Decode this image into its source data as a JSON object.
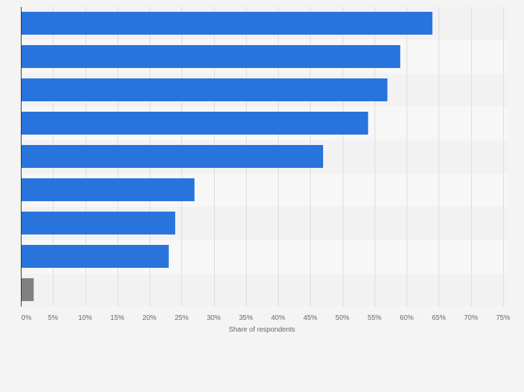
{
  "chart_data": {
    "type": "bar",
    "orientation": "horizontal",
    "categories": [
      "",
      "",
      "",
      "",
      "",
      "",
      "",
      "",
      ""
    ],
    "values": [
      64,
      59,
      57,
      54,
      47,
      27,
      24,
      23,
      2
    ],
    "series": [
      {
        "name": "",
        "values": [
          64,
          59,
          57,
          54,
          47,
          27,
          24,
          23,
          2
        ]
      }
    ],
    "bar_colors": [
      "#2874dc",
      "#2874dc",
      "#2874dc",
      "#2874dc",
      "#2874dc",
      "#2874dc",
      "#2874dc",
      "#2874dc",
      "#808080"
    ],
    "title": "",
    "xlabel": "Share of respondents",
    "ylabel": "",
    "xlim": [
      0,
      75
    ],
    "x_ticks": [
      0,
      5,
      10,
      15,
      20,
      25,
      30,
      35,
      40,
      45,
      50,
      55,
      60,
      65,
      70,
      75
    ],
    "x_tick_labels": [
      "0%",
      "5%",
      "10%",
      "15%",
      "20%",
      "25%",
      "30%",
      "35%",
      "40%",
      "45%",
      "50%",
      "55%",
      "60%",
      "65%",
      "70%",
      "75%"
    ],
    "grid": true,
    "legend": "none",
    "colors": {
      "bar": "#2874dc",
      "other_bar": "#808080",
      "band_dark": "#f2f2f2",
      "band_light": "#f7f7f7",
      "gridline": "#dcdcdc",
      "axis": "#333333",
      "tick_text": "#666666"
    }
  }
}
